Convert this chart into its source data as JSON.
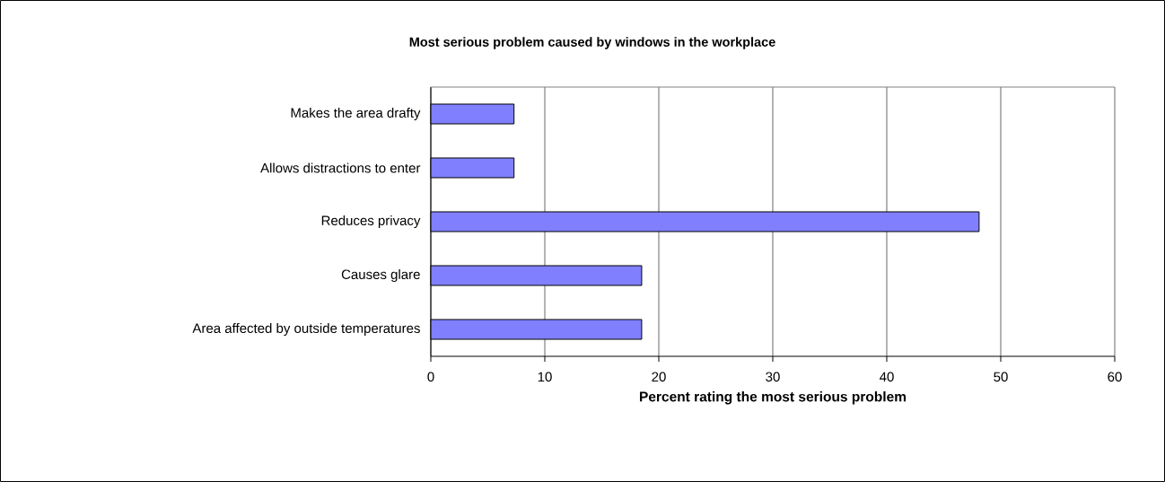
{
  "chart_data": {
    "type": "bar",
    "orientation": "horizontal",
    "title": "Most serious problem caused by windows in the workplace",
    "xlabel": "Percent rating the most serious problem",
    "categories": [
      "Makes the area drafty",
      "Allows distractions to enter",
      "Reduces privacy",
      "Causes glare",
      "Area affected by outside temperatures"
    ],
    "values": [
      7.3,
      7.3,
      48.1,
      18.5,
      18.5
    ],
    "color": "#8080ff",
    "xlim": [
      0,
      60
    ],
    "xticks": [
      0,
      10,
      20,
      30,
      40,
      50,
      60
    ],
    "grid": "x"
  }
}
